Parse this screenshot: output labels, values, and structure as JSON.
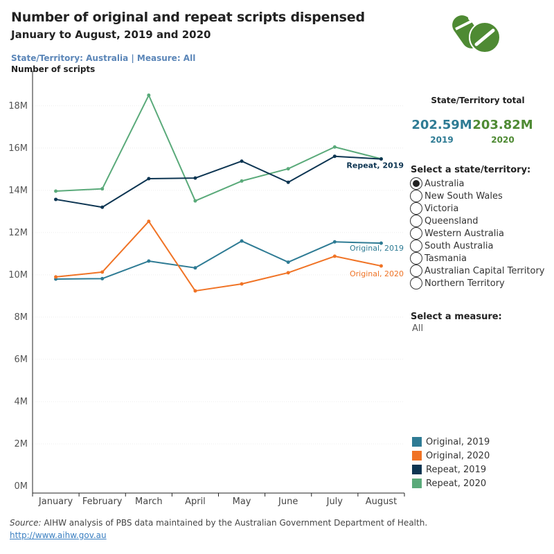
{
  "header": {
    "title": "Number of original and repeat scripts dispensed",
    "subtitle": "January to August, 2019 and 2020",
    "filters": "State/Territory: Australia | Measure: All",
    "y_axis_label": "Number of scripts",
    "logo_icon": "pills-icon",
    "logo_color": "#4e8a33"
  },
  "totals": {
    "heading": "State/Territory total",
    "items": [
      {
        "value": "202.59M",
        "year": "2019",
        "color": "#2e7b94"
      },
      {
        "value": "203.82M",
        "year": "2020",
        "color": "#4e8a33"
      }
    ]
  },
  "state_selector": {
    "heading": "Select a state/territory:",
    "options": [
      "Australia",
      "New South Wales",
      "Victoria",
      "Queensland",
      "Western Australia",
      "South Australia",
      "Tasmania",
      "Australian Capital Territory",
      "Northern Territory"
    ],
    "selected": "Australia"
  },
  "measure_selector": {
    "heading": "Select a measure:",
    "value": "All"
  },
  "legend": [
    {
      "label": "Original, 2019",
      "color": "#2e7b94"
    },
    {
      "label": "Original, 2020",
      "color": "#f07325"
    },
    {
      "label": "Repeat, 2019",
      "color": "#0d3552"
    },
    {
      "label": "Repeat, 2020",
      "color": "#5aaa7a"
    }
  ],
  "footer": {
    "source_prefix": "Source:",
    "source_text": " AIHW analysis of PBS data maintained by the Australian Government Department of Health.",
    "link": "http://www.aihw.gov.au"
  },
  "chart_data": {
    "type": "line",
    "title": "Number of original and repeat scripts dispensed",
    "subtitle": "January to August, 2019 and 2020",
    "ylabel": "Number of scripts",
    "xlabel": "",
    "categories": [
      "January",
      "February",
      "March",
      "April",
      "May",
      "June",
      "July",
      "August"
    ],
    "ylim": [
      0,
      19000000
    ],
    "yticks": [
      0,
      2000000,
      4000000,
      6000000,
      8000000,
      10000000,
      12000000,
      14000000,
      16000000,
      18000000
    ],
    "ytick_labels": [
      "0M",
      "2M",
      "4M",
      "6M",
      "8M",
      "10M",
      "12M",
      "14M",
      "16M",
      "18M"
    ],
    "grid": true,
    "legend_position": "bottom-right",
    "series": [
      {
        "name": "Original, 2019",
        "color": "#2e7b94",
        "end_label": "Original, 2019",
        "values": [
          9800000,
          9820000,
          10650000,
          10330000,
          11600000,
          10600000,
          11560000,
          11500000
        ]
      },
      {
        "name": "Original, 2020",
        "color": "#f07325",
        "end_label": "Original, 2020",
        "values": [
          9900000,
          10130000,
          12530000,
          9240000,
          9570000,
          10100000,
          10880000,
          10420000
        ]
      },
      {
        "name": "Repeat, 2019",
        "color": "#0d3552",
        "end_label": "Repeat, 2019",
        "values": [
          13570000,
          13200000,
          14550000,
          14580000,
          15380000,
          14380000,
          15610000,
          15480000
        ]
      },
      {
        "name": "Repeat, 2020",
        "color": "#5aaa7a",
        "end_label": "",
        "values": [
          13960000,
          14070000,
          18500000,
          13500000,
          14440000,
          15020000,
          16050000,
          15490000
        ]
      }
    ]
  }
}
